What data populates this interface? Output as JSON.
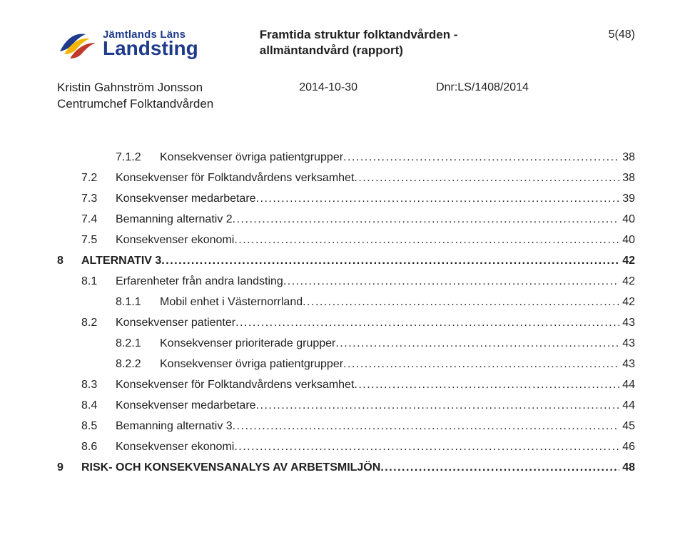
{
  "header": {
    "logo_line1": "Jämtlands Läns",
    "logo_line2": "Landsting",
    "doc_title_line1": "Framtida struktur folktandvården -",
    "doc_title_line2": "allmäntandvård (rapport)",
    "page_indicator": "5(48)",
    "author_name": "Kristin Gahnström Jonsson",
    "author_role": "Centrumchef Folktandvården",
    "date": "2014-10-30",
    "dnr": "Dnr:LS/1408/2014",
    "logo_colors": {
      "brand_blue": "#1e3a8a",
      "stripe_blue": "#1e3a8a",
      "stripe_yellow": "#f4b400",
      "stripe_red": "#c0392b"
    }
  },
  "toc": {
    "text_color": "#222222",
    "font_size_pt": 12,
    "items": [
      {
        "level": 2,
        "num": "7.1.2",
        "label": "Konsekvenser övriga patientgrupper",
        "page": "38"
      },
      {
        "level": 1,
        "num": "7.2",
        "label": "Konsekvenser för Folktandvårdens verksamhet",
        "page": "38"
      },
      {
        "level": 1,
        "num": "7.3",
        "label": "Konsekvenser medarbetare",
        "page": "39"
      },
      {
        "level": 1,
        "num": "7.4",
        "label": "Bemanning alternativ 2",
        "page": "40"
      },
      {
        "level": 1,
        "num": "7.5",
        "label": "Konsekvenser ekonomi",
        "page": "40"
      },
      {
        "level": 0,
        "num": "8",
        "label": "ALTERNATIV 3",
        "page": "42"
      },
      {
        "level": 1,
        "num": "8.1",
        "label": "Erfarenheter från andra landsting",
        "page": "42"
      },
      {
        "level": 2,
        "num": "8.1.1",
        "label": "Mobil enhet i Västernorrland",
        "page": "42"
      },
      {
        "level": 1,
        "num": "8.2",
        "label": "Konsekvenser patienter",
        "page": "43"
      },
      {
        "level": 2,
        "num": "8.2.1",
        "label": "Konsekvenser prioriterade grupper",
        "page": "43"
      },
      {
        "level": 2,
        "num": "8.2.2",
        "label": "Konsekvenser övriga patientgrupper",
        "page": "43"
      },
      {
        "level": 1,
        "num": "8.3",
        "label": "Konsekvenser för Folktandvårdens verksamhet",
        "page": "44"
      },
      {
        "level": 1,
        "num": "8.4",
        "label": "Konsekvenser medarbetare",
        "page": "44"
      },
      {
        "level": 1,
        "num": "8.5",
        "label": "Bemanning alternativ 3",
        "page": "45"
      },
      {
        "level": 1,
        "num": "8.6",
        "label": "Konsekvenser ekonomi",
        "page": "46"
      },
      {
        "level": 0,
        "num": "9",
        "label": "RISK- OCH KONSEKVENSANALYS AV ARBETSMILJÖN",
        "page": "48"
      }
    ]
  }
}
